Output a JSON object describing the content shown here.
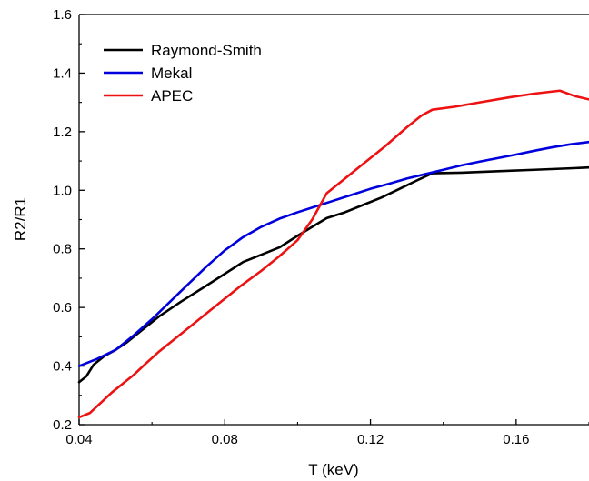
{
  "chart_data": {
    "type": "line",
    "title": "",
    "xlabel": "T (keV)",
    "ylabel": "R2/R1",
    "xlim": [
      0.04,
      0.18
    ],
    "ylim": [
      0.2,
      1.6
    ],
    "xticks": [
      0.04,
      0.08,
      0.12,
      0.16
    ],
    "xtick_labels": [
      "0.04",
      "0.08",
      "0.12",
      "0.16"
    ],
    "yticks": [
      0.2,
      0.4,
      0.6,
      0.8,
      1.0,
      1.2,
      1.4,
      1.6
    ],
    "ytick_labels": [
      "0.2",
      "0.4",
      "0.6",
      "0.8",
      "1.0",
      "1.2",
      "1.4",
      "1.6"
    ],
    "grid": false,
    "legend_position": "top-left",
    "series": [
      {
        "name": "Raymond-Smith",
        "color": "#000000",
        "x": [
          0.04,
          0.042,
          0.044,
          0.047,
          0.05,
          0.053,
          0.057,
          0.062,
          0.068,
          0.075,
          0.08,
          0.085,
          0.09,
          0.095,
          0.1,
          0.104,
          0.108,
          0.113,
          0.118,
          0.123,
          0.128,
          0.133,
          0.137,
          0.145,
          0.155,
          0.165,
          0.175,
          0.18
        ],
        "y": [
          0.345,
          0.365,
          0.405,
          0.435,
          0.455,
          0.48,
          0.52,
          0.57,
          0.62,
          0.675,
          0.715,
          0.755,
          0.78,
          0.805,
          0.845,
          0.875,
          0.905,
          0.925,
          0.95,
          0.975,
          1.005,
          1.035,
          1.058,
          1.06,
          1.065,
          1.07,
          1.075,
          1.078
        ]
      },
      {
        "name": "Mekal",
        "color": "#0000dd",
        "x": [
          0.04,
          0.045,
          0.05,
          0.055,
          0.06,
          0.065,
          0.07,
          0.075,
          0.08,
          0.085,
          0.09,
          0.095,
          0.1,
          0.105,
          0.11,
          0.115,
          0.12,
          0.125,
          0.13,
          0.135,
          0.14,
          0.145,
          0.15,
          0.155,
          0.16,
          0.165,
          0.17,
          0.175,
          0.18
        ],
        "y": [
          0.4,
          0.425,
          0.455,
          0.505,
          0.56,
          0.62,
          0.68,
          0.74,
          0.795,
          0.84,
          0.875,
          0.903,
          0.925,
          0.945,
          0.965,
          0.985,
          1.005,
          1.022,
          1.04,
          1.055,
          1.07,
          1.085,
          1.098,
          1.11,
          1.122,
          1.135,
          1.147,
          1.157,
          1.165
        ]
      },
      {
        "name": "APEC",
        "color": "#ee1111",
        "x": [
          0.04,
          0.043,
          0.046,
          0.049,
          0.052,
          0.055,
          0.058,
          0.062,
          0.067,
          0.072,
          0.078,
          0.084,
          0.09,
          0.095,
          0.1,
          0.104,
          0.108,
          0.112,
          0.118,
          0.124,
          0.13,
          0.134,
          0.137,
          0.143,
          0.15,
          0.158,
          0.165,
          0.172,
          0.176,
          0.18
        ],
        "y": [
          0.225,
          0.24,
          0.275,
          0.31,
          0.34,
          0.37,
          0.405,
          0.45,
          0.5,
          0.55,
          0.61,
          0.67,
          0.725,
          0.775,
          0.83,
          0.9,
          0.99,
          1.03,
          1.09,
          1.15,
          1.215,
          1.255,
          1.275,
          1.285,
          1.3,
          1.317,
          1.33,
          1.34,
          1.322,
          1.31
        ]
      }
    ]
  }
}
